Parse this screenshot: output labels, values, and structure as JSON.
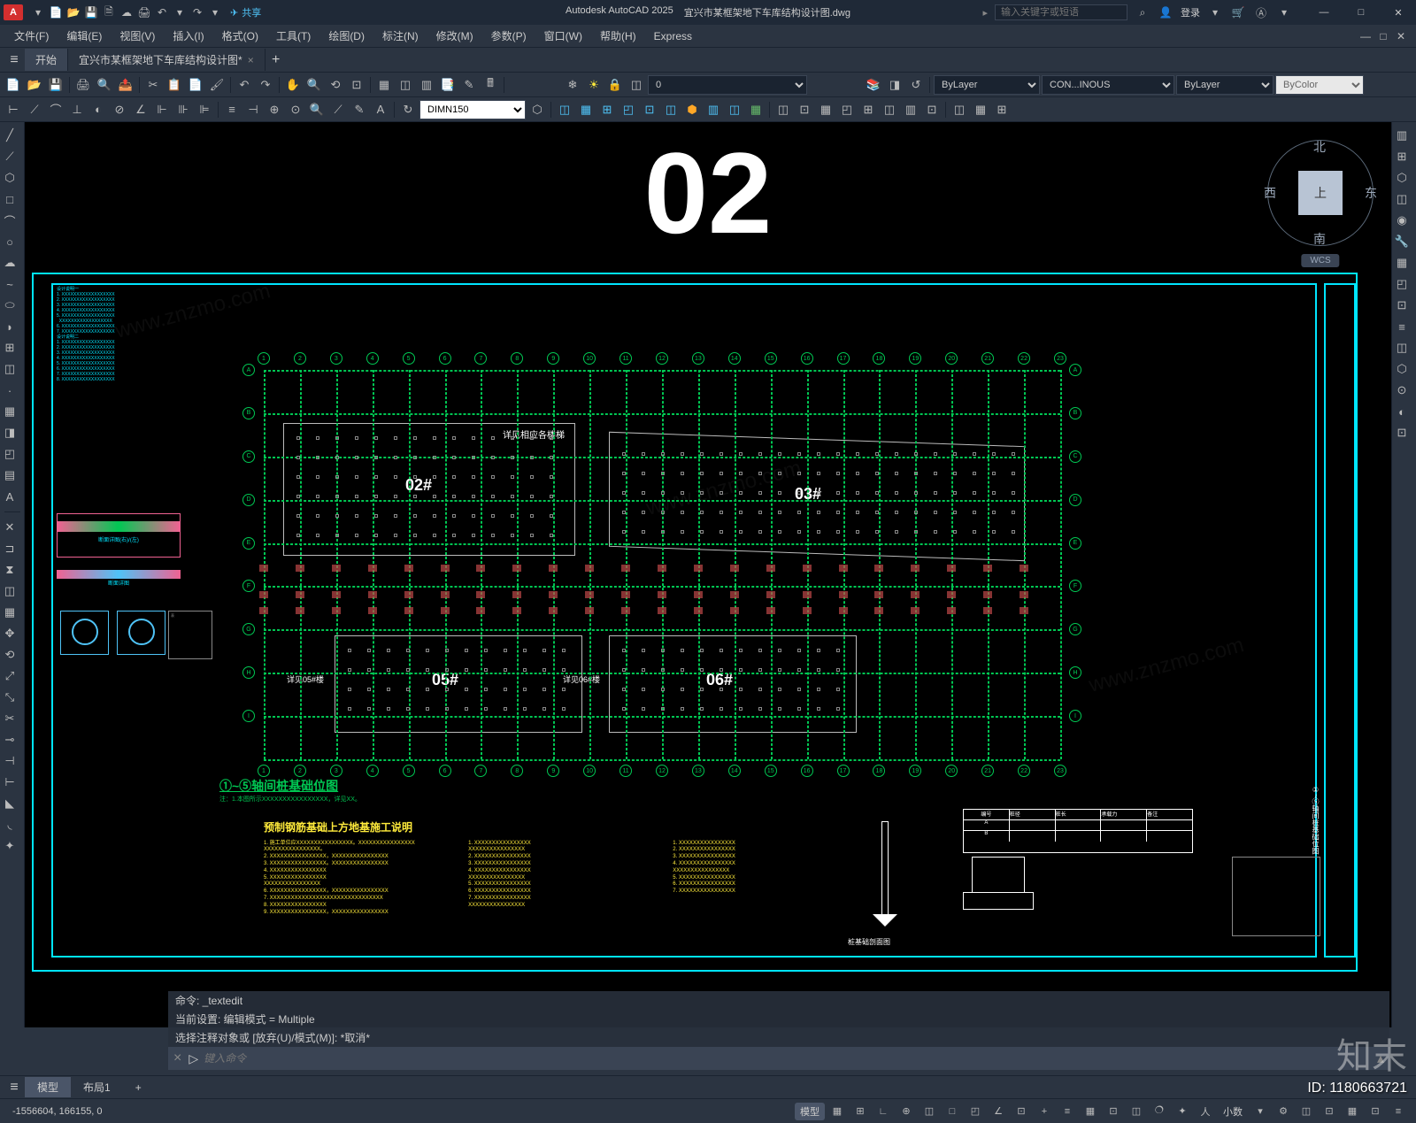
{
  "app": {
    "name": "Autodesk AutoCAD 2025",
    "document": "宜兴市某框架地下车库结构设计图.dwg",
    "logo_letter": "A"
  },
  "titlebar": {
    "share": "共享",
    "search_placeholder": "输入关键字或短语",
    "search_icon": "⌕",
    "login": "登录",
    "cart": "🛒",
    "help": "?",
    "min": "—",
    "max": "□",
    "close": "✕"
  },
  "qat": [
    "▾",
    "📄",
    "📂",
    "💾",
    "💾",
    "↶",
    "↷",
    "🖨",
    "↩",
    "↪",
    "▾"
  ],
  "menubar": {
    "items": [
      "文件(F)",
      "编辑(E)",
      "视图(V)",
      "插入(I)",
      "格式(O)",
      "工具(T)",
      "绘图(D)",
      "标注(N)",
      "修改(M)",
      "参数(P)",
      "窗口(W)",
      "帮助(H)",
      "Express"
    ]
  },
  "tabs": {
    "start": "开始",
    "doc": "宜兴市某框架地下车库结构设计图*",
    "add": "+"
  },
  "toolbar1": {
    "layer_value": "0",
    "layer_dropdown": "ByLayer",
    "linetype": "CON...INOUS",
    "lineweight": "ByLayer",
    "color": "ByColor"
  },
  "toolbar2": {
    "dimstyle": "DIMN150"
  },
  "drawing": {
    "sheet_number": "02",
    "zone_02": "02#",
    "zone_03": "03#",
    "zone_05": "05#",
    "zone_06": "06#",
    "note_top": "详见相应各楼梯",
    "note_left_05": "详见05#楼",
    "note_left_06": "详见06#楼",
    "plan_title": "①~⑤轴间桩基础位图",
    "construction_title": "预制钢筋基础上方地基施工说明",
    "grid_color": "#00c853",
    "frame_color": "#00e5ff",
    "zone_border_color": "#bbbbbb",
    "text_yellow": "#ffeb3b",
    "foot_color": "#c04848"
  },
  "navcube": {
    "top": "上",
    "n": "北",
    "s": "南",
    "e": "东",
    "w": "西",
    "wcs": "WCS"
  },
  "command": {
    "line1": "命令: _textedit",
    "line2": "当前设置: 编辑模式 = Multiple",
    "line3": "选择注释对象或 [放弃(U)/模式(M)]: *取消*",
    "prompt": "▷",
    "placeholder": "键入命令"
  },
  "model_tabs": {
    "model": "模型",
    "layout1": "布局1",
    "add": "+"
  },
  "statusbar": {
    "coords": "-1556604, 166155, 0",
    "paper": "模型",
    "grid": "▦",
    "scale": "小数"
  },
  "watermark": {
    "id_label": "ID: 1180663721",
    "logo": "知末",
    "url": "www.znzmo.com"
  },
  "left_tools": [
    "╱",
    "╱",
    "⬡",
    "□",
    "○",
    "⊙",
    "~",
    "⬭",
    "✦",
    "◫",
    "▦",
    "◰",
    "A",
    "▤"
  ],
  "right_tools": [
    "▥",
    "⊞",
    "⬡",
    "◫",
    "◉",
    "🔧",
    "▦",
    "◰",
    "⊡",
    "≡",
    "◫",
    "⬡",
    "⊙",
    "◐",
    "⊡"
  ],
  "status_icons": [
    "▦",
    "⊕",
    "∟",
    "◫",
    "⊡",
    "◐",
    "▦",
    "⬡",
    "◫",
    "三",
    "⊞",
    "≡",
    "⊡",
    "▦",
    "✦",
    "⊡",
    "◫",
    "+",
    "⚙",
    "小数",
    "▾",
    "▦",
    "◫",
    "≡"
  ]
}
